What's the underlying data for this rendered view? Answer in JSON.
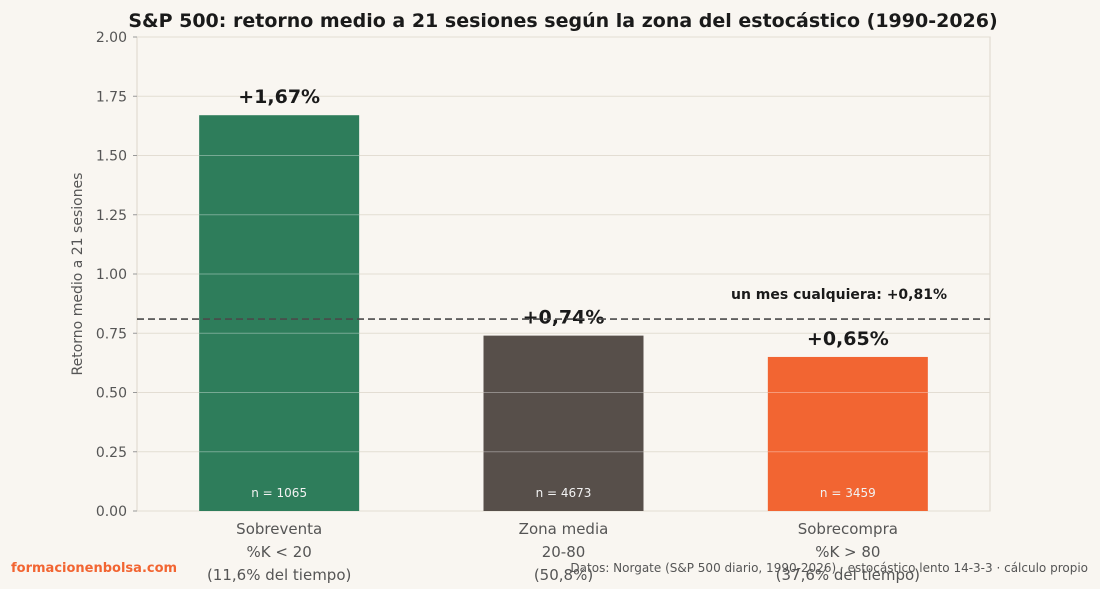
{
  "chart_data": {
    "type": "bar",
    "title": "S&P 500: retorno medio a 21 sesiones según la zona del estocástico (1990-2026)",
    "xlabel": "",
    "ylabel": "Retorno medio a 21 sesiones",
    "ylim": [
      0,
      2.0
    ],
    "yticks": [
      "0.00",
      "0.25",
      "0.50",
      "0.75",
      "1.00",
      "1.25",
      "1.50",
      "1.75",
      "2.00"
    ],
    "grid": "horizontal",
    "categories": [
      {
        "lines": [
          "Sobreventa",
          "%K < 20",
          "(11,6% del tiempo)"
        ]
      },
      {
        "lines": [
          "Zona media",
          "20-80",
          "(50,8%)"
        ]
      },
      {
        "lines": [
          "Sobrecompra",
          "%K > 80",
          "(37,6% del tiempo)"
        ]
      }
    ],
    "values": [
      1.67,
      0.74,
      0.65
    ],
    "value_labels": [
      "+1,67%",
      "+0,74%",
      "+0,65%"
    ],
    "n_labels": [
      "n = 1065",
      "n = 4673",
      "n = 3459"
    ],
    "colors": [
      "#2e7d5b",
      "#574f4a",
      "#f26532"
    ],
    "reference_line": {
      "value": 0.81,
      "label": "un mes cualquiera: +0,81%",
      "style": "dashed"
    }
  },
  "footer": {
    "brand": "formacionenbolsa.com",
    "source": "Datos: Norgate (S&P 500 diario, 1990-2026) · estocástico lento 14-3-3 · cálculo propio"
  }
}
